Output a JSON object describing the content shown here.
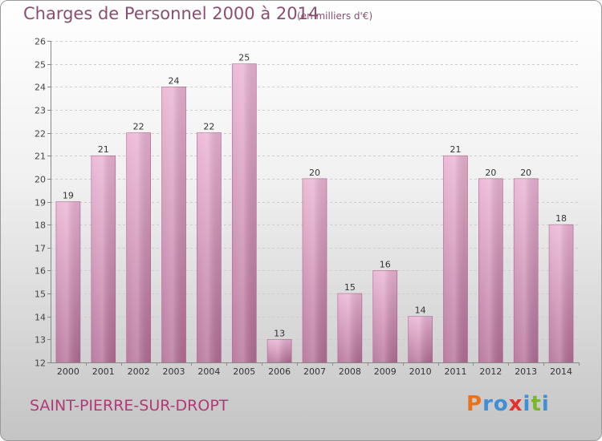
{
  "header": {
    "title": "Charges de Personnel 2000 à 2014",
    "subtitle": "(en milliers d'€)"
  },
  "footer": {
    "town": "SAINT-PIERRE-SUR-DROPT",
    "logo_letters": [
      "P",
      "r",
      "o",
      "x",
      "i",
      "t",
      "i"
    ],
    "logo_colors": [
      "#e8731c",
      "#3f8fd4",
      "#3f8fd4",
      "#e8302a",
      "#3f8fd4",
      "#7ab828",
      "#3f8fd4"
    ]
  },
  "chart_data": {
    "type": "bar",
    "title": "Charges de Personnel 2000 à 2014",
    "subtitle": "(en milliers d'€)",
    "categories": [
      "2000",
      "2001",
      "2002",
      "2003",
      "2004",
      "2005",
      "2006",
      "2007",
      "2008",
      "2009",
      "2010",
      "2011",
      "2012",
      "2013",
      "2014"
    ],
    "values": [
      19,
      21,
      22,
      24,
      22,
      25,
      13,
      20,
      15,
      16,
      14,
      21,
      20,
      20,
      18
    ],
    "ylim": [
      12,
      26
    ],
    "yticks": [
      12,
      13,
      14,
      15,
      16,
      17,
      18,
      19,
      20,
      21,
      22,
      23,
      24,
      25,
      26
    ],
    "grid": true,
    "bar_color": "#d98fb8"
  }
}
